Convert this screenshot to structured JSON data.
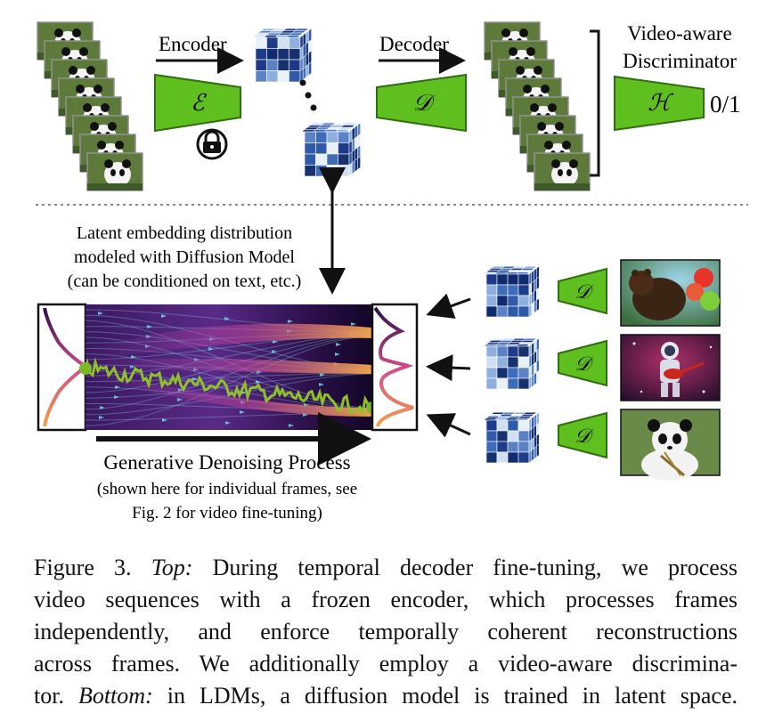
{
  "top": {
    "encoder_label": "Encoder",
    "decoder_label": "Decoder",
    "encoder_symbol": "ℰ",
    "decoder_symbol": "𝒟",
    "discriminator_symbol": "ℋ",
    "discriminator_title_line1": "Video-aware",
    "discriminator_title_line2": "Discriminator",
    "discriminator_output": "0/1",
    "frozen_icon": "lock-icon"
  },
  "bottom": {
    "latent_text_line1": "Latent embedding distribution",
    "latent_text_line2": "modeled with Diffusion Model",
    "latent_text_line3": "(can be conditioned on text, etc.)",
    "process_title": "Generative Denoising Process",
    "process_sub_line1": "(shown here for individual frames, see",
    "process_sub_line2": "Fig. 2 for video fine-tuning)",
    "decoder_symbol": "𝒟",
    "output_images": [
      "bear-with-balloons-image",
      "astronaut-guitar-image",
      "panda-bamboo-image"
    ]
  },
  "caption": {
    "label": "Figure 3.",
    "top_label": "Top:",
    "line1_rest": " During temporal decoder fine-tuning, we process",
    "line2": "video sequences with a frozen encoder, which processes frames",
    "line3": "independently, and enforce temporally coherent reconstructions",
    "line4": "across frames. We additionally employ a video-aware discrimina-",
    "line5_start": "tor. ",
    "bottom_label": "Bottom:",
    "line5_rest": " in LDMs, a diffusion model is trained in latent space."
  },
  "colors": {
    "green": "#5fbf1f",
    "green_dark": "#2f6e10",
    "latent_blue_dark": "#1e3a8a",
    "latent_blue_light": "#cfe0f5",
    "flow_purple": "#2a0f4a",
    "flow_magenta": "#c03a9a",
    "flow_orange": "#f4a04a",
    "trajectory_green": "#86b52a"
  }
}
